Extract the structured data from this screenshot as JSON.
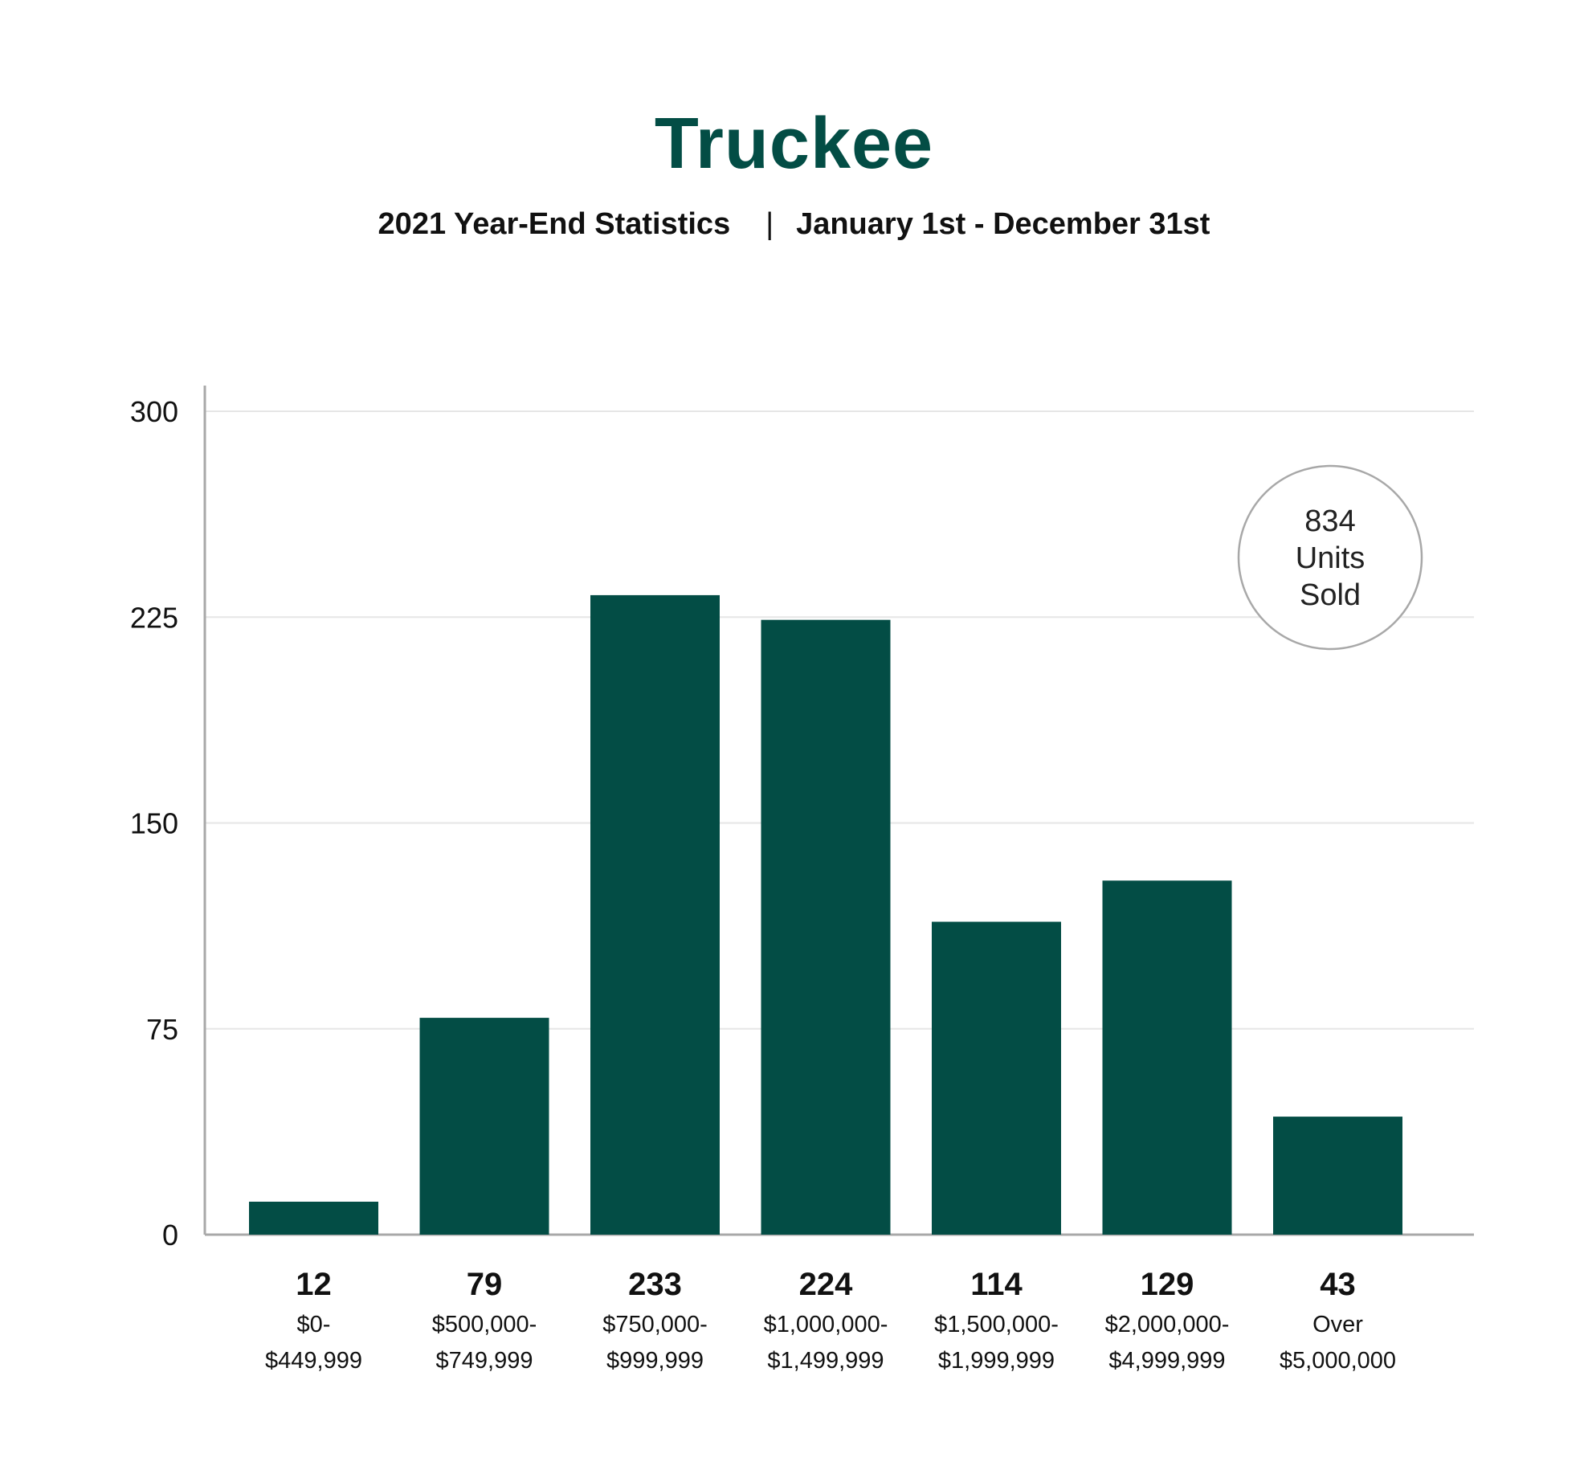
{
  "chart_data": {
    "type": "bar",
    "title": "Truckee",
    "subtitle_left": "2021 Year-End Statistics",
    "subtitle_sep": "|",
    "subtitle_right": "January 1st - December 31st",
    "categories": [
      [
        "$0-",
        "$449,999"
      ],
      [
        "$500,000-",
        "$749,999"
      ],
      [
        "$750,000-",
        "$999,999"
      ],
      [
        "$1,000,000-",
        "$1,499,999"
      ],
      [
        "$1,500,000-",
        "$1,999,999"
      ],
      [
        "$2,000,000-",
        "$4,999,999"
      ],
      [
        "Over",
        "$5,000,000"
      ]
    ],
    "values": [
      12,
      79,
      233,
      224,
      114,
      129,
      43
    ],
    "value_labels": [
      "12",
      "79",
      "233",
      "224",
      "114",
      "129",
      "43"
    ],
    "yticks": [
      "0",
      "75",
      "150",
      "225",
      "300"
    ],
    "ylim": [
      0,
      300
    ],
    "grid": true,
    "xlabel": "",
    "ylabel": "",
    "annotation": {
      "lines": [
        "834",
        "Units",
        "Sold"
      ],
      "placement": "top-right"
    },
    "colors": {
      "bar": "#034d45",
      "title": "#034d45",
      "grid": "#e6e6e6",
      "axis": "#a8a8a8"
    }
  }
}
